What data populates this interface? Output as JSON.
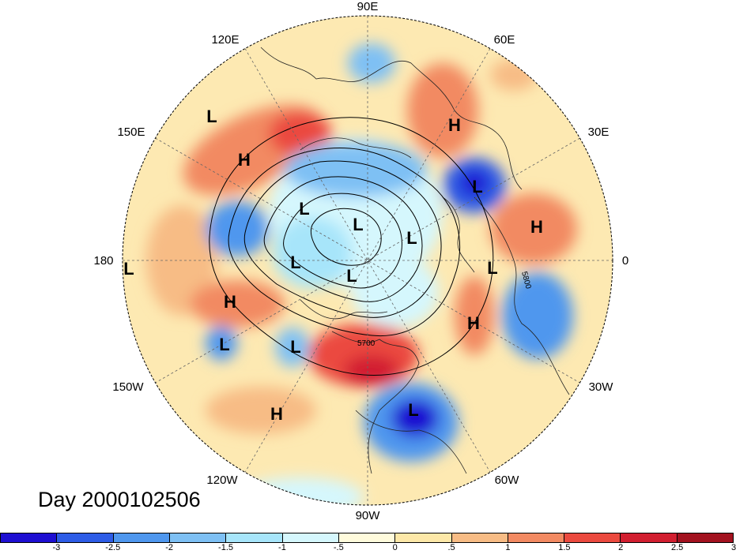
{
  "title": "Day 2000102506",
  "longitude_labels": {
    "lon_90E": "90E",
    "lon_60E": "60E",
    "lon_120E": "120E",
    "lon_30E": "30E",
    "lon_150E": "150E",
    "lon_0": "0",
    "lon_180": "180",
    "lon_30W": "30W",
    "lon_150W": "150W",
    "lon_60W": "60W",
    "lon_120W": "120W",
    "lon_90W": "90W"
  },
  "contour_labels": [
    "5800",
    "5700"
  ],
  "pressure_centers": {
    "high": "H",
    "low": "L"
  },
  "colorbar": {
    "colors": [
      "#1e0fd2",
      "#2d5ce6",
      "#4f97ee",
      "#7ec0f4",
      "#a7e5fa",
      "#d5f7fd",
      "#fffbdc",
      "#fde8a8",
      "#f7bc85",
      "#f28a62",
      "#eb4a3f",
      "#d21f30",
      "#a3121f"
    ],
    "ticks": [
      "-3",
      "-2.5",
      "-2",
      "-1.5",
      "-1",
      "-.5",
      "0",
      ".5",
      "1",
      "1.5",
      "2",
      "2.5",
      "3"
    ]
  }
}
